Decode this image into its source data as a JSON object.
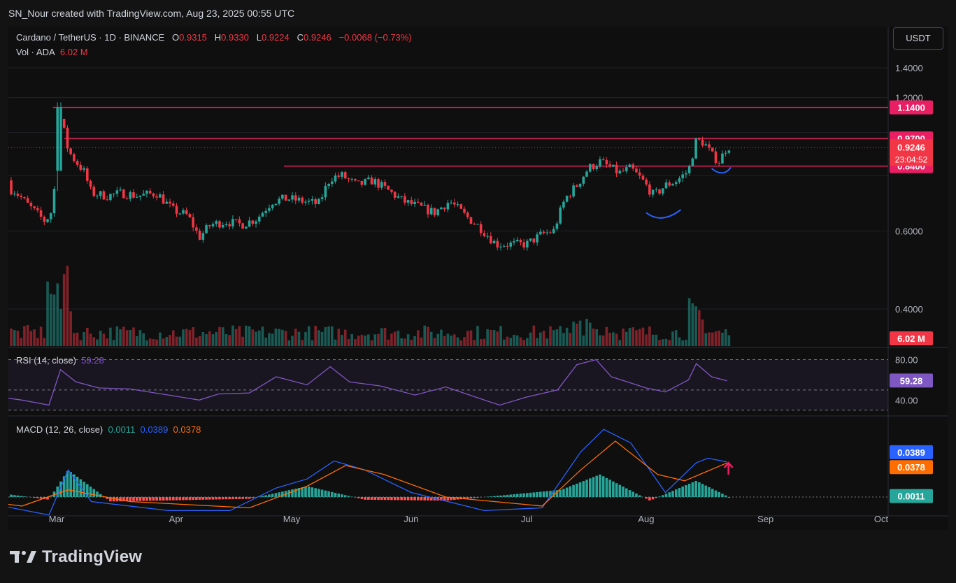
{
  "header": {
    "title": "SN_Nour created with TradingView.com, Aug 23, 2025 00:55 UTC"
  },
  "legend": {
    "symbol": "Cardano / TetherUS · 1D · BINANCE",
    "o_label": "O",
    "o_value": "0.9315",
    "h_label": "H",
    "h_value": "0.9330",
    "l_label": "L",
    "l_value": "0.9224",
    "c_label": "C",
    "c_value": "0.9246",
    "change": "−0.0068 (−0.73%)",
    "vol_label": "Vol · ADA",
    "vol_value": "6.02 M"
  },
  "currency_button": "USDT",
  "rsi_legend": {
    "label": "RSI (14, close)",
    "value": "59.28"
  },
  "macd_legend": {
    "label": "MACD (12, 26, close)",
    "hist": "0.0011",
    "macd": "0.0389",
    "signal": "0.0378"
  },
  "footer": {
    "brand": "TradingView"
  },
  "colors": {
    "up": "#26a69a",
    "down": "#f23645",
    "level": "#e91e63",
    "rsi": "#7e57c2",
    "macd": "#2962ff",
    "signal": "#ff6d00",
    "annotation": "#2962ff"
  },
  "chart_data": [
    {
      "type": "candlestick",
      "title": "Cardano / TetherUS · 1D · BINANCE",
      "x_ticks": [
        "Mar",
        "Apr",
        "May",
        "Jun",
        "Jul",
        "Aug",
        "Sep",
        "Oct"
      ],
      "y_ticks": [
        "1.4000",
        "1.2000",
        "0.6000",
        "0.4000"
      ],
      "ylim": [
        0.33,
        1.5
      ],
      "last_price": "0.9246",
      "countdown": "23:04:52",
      "horizontal_levels": [
        {
          "label": "1.1400",
          "value": 1.14,
          "from": "2025-02-28"
        },
        {
          "label": "0.9700",
          "value": 0.97,
          "from": "2025-03-03"
        },
        {
          "label": "0.8400",
          "value": 0.84,
          "from": "2025-04-29"
        }
      ],
      "volume_label": "6.02 M",
      "path": [
        [
          "2025-02-01",
          0.78
        ],
        [
          "2025-02-05",
          0.77
        ],
        [
          "2025-02-10",
          0.76
        ],
        [
          "2025-02-14",
          0.76
        ],
        [
          "2025-02-18",
          0.74
        ],
        [
          "2025-02-22",
          0.68
        ],
        [
          "2025-02-26",
          0.63
        ],
        [
          "2025-02-28",
          0.67
        ],
        [
          "2025-03-02",
          1.08
        ],
        [
          "2025-03-03",
          1.0
        ],
        [
          "2025-03-04",
          0.91
        ],
        [
          "2025-03-06",
          0.86
        ],
        [
          "2025-03-08",
          0.82
        ],
        [
          "2025-03-10",
          0.73
        ],
        [
          "2025-03-14",
          0.72
        ],
        [
          "2025-03-18",
          0.73
        ],
        [
          "2025-03-22",
          0.72
        ],
        [
          "2025-03-27",
          0.73
        ],
        [
          "2025-03-31",
          0.67
        ],
        [
          "2025-04-04",
          0.65
        ],
        [
          "2025-04-07",
          0.58
        ],
        [
          "2025-04-10",
          0.62
        ],
        [
          "2025-04-14",
          0.63
        ],
        [
          "2025-04-18",
          0.62
        ],
        [
          "2025-04-22",
          0.64
        ],
        [
          "2025-04-26",
          0.7
        ],
        [
          "2025-04-30",
          0.71
        ],
        [
          "2025-05-04",
          0.7
        ],
        [
          "2025-05-08",
          0.69
        ],
        [
          "2025-05-11",
          0.79
        ],
        [
          "2025-05-14",
          0.8
        ],
        [
          "2025-05-18",
          0.76
        ],
        [
          "2025-05-22",
          0.78
        ],
        [
          "2025-05-26",
          0.74
        ],
        [
          "2025-05-30",
          0.7
        ],
        [
          "2025-06-03",
          0.68
        ],
        [
          "2025-06-07",
          0.66
        ],
        [
          "2025-06-11",
          0.7
        ],
        [
          "2025-06-15",
          0.65
        ],
        [
          "2025-06-19",
          0.61
        ],
        [
          "2025-06-23",
          0.56
        ],
        [
          "2025-06-27",
          0.56
        ],
        [
          "2025-07-01",
          0.56
        ],
        [
          "2025-07-05",
          0.59
        ],
        [
          "2025-07-08",
          0.6
        ],
        [
          "2025-07-11",
          0.71
        ],
        [
          "2025-07-14",
          0.76
        ],
        [
          "2025-07-17",
          0.83
        ],
        [
          "2025-07-20",
          0.86
        ],
        [
          "2025-07-22",
          0.84
        ],
        [
          "2025-07-25",
          0.81
        ],
        [
          "2025-07-28",
          0.83
        ],
        [
          "2025-07-31",
          0.78
        ],
        [
          "2025-08-03",
          0.72
        ],
        [
          "2025-08-06",
          0.76
        ],
        [
          "2025-08-09",
          0.78
        ],
        [
          "2025-08-12",
          0.82
        ],
        [
          "2025-08-14",
          0.96
        ],
        [
          "2025-08-16",
          0.95
        ],
        [
          "2025-08-18",
          0.89
        ],
        [
          "2025-08-20",
          0.86
        ],
        [
          "2025-08-22",
          0.93
        ]
      ]
    },
    {
      "type": "line",
      "title": "RSI (14, close)",
      "y_ticks": [
        "80.00",
        "40.00"
      ],
      "ylim": [
        25,
        90
      ],
      "current_value": "59.28",
      "points": [
        [
          "2025-02-01",
          48
        ],
        [
          "2025-02-10",
          45
        ],
        [
          "2025-02-20",
          40
        ],
        [
          "2025-02-27",
          35
        ],
        [
          "2025-03-02",
          70
        ],
        [
          "2025-03-06",
          58
        ],
        [
          "2025-03-12",
          52
        ],
        [
          "2025-03-20",
          51
        ],
        [
          "2025-03-30",
          45
        ],
        [
          "2025-04-07",
          40
        ],
        [
          "2025-04-12",
          46
        ],
        [
          "2025-04-20",
          47
        ],
        [
          "2025-04-27",
          63
        ],
        [
          "2025-05-05",
          55
        ],
        [
          "2025-05-11",
          73
        ],
        [
          "2025-05-16",
          58
        ],
        [
          "2025-05-24",
          54
        ],
        [
          "2025-06-02",
          45
        ],
        [
          "2025-06-10",
          53
        ],
        [
          "2025-06-20",
          40
        ],
        [
          "2025-06-24",
          35
        ],
        [
          "2025-07-01",
          43
        ],
        [
          "2025-07-09",
          50
        ],
        [
          "2025-07-14",
          75
        ],
        [
          "2025-07-19",
          80
        ],
        [
          "2025-07-23",
          63
        ],
        [
          "2025-08-01",
          52
        ],
        [
          "2025-08-06",
          48
        ],
        [
          "2025-08-12",
          60
        ],
        [
          "2025-08-14",
          76
        ],
        [
          "2025-08-18",
          63
        ],
        [
          "2025-08-22",
          59
        ]
      ]
    },
    {
      "type": "line",
      "title": "MACD (12, 26, close)",
      "series": [
        {
          "name": "MACD",
          "points": [
            [
              "2025-02-01",
              0.005
            ],
            [
              "2025-02-15",
              -0.01
            ],
            [
              "2025-02-27",
              -0.02
            ],
            [
              "2025-03-04",
              0.03
            ],
            [
              "2025-03-10",
              -0.005
            ],
            [
              "2025-03-30",
              -0.015
            ],
            [
              "2025-04-15",
              -0.015
            ],
            [
              "2025-04-27",
              0.01
            ],
            [
              "2025-05-05",
              0.02
            ],
            [
              "2025-05-12",
              0.04
            ],
            [
              "2025-05-20",
              0.03
            ],
            [
              "2025-06-01",
              0.005
            ],
            [
              "2025-06-20",
              -0.015
            ],
            [
              "2025-07-05",
              -0.012
            ],
            [
              "2025-07-15",
              0.05
            ],
            [
              "2025-07-21",
              0.075
            ],
            [
              "2025-07-28",
              0.06
            ],
            [
              "2025-08-06",
              0.005
            ],
            [
              "2025-08-14",
              0.038
            ],
            [
              "2025-08-17",
              0.043
            ],
            [
              "2025-08-22",
              0.0389
            ]
          ]
        },
        {
          "name": "Signal",
          "points": [
            [
              "2025-02-01",
              0.0
            ],
            [
              "2025-02-20",
              -0.01
            ],
            [
              "2025-03-04",
              0.008
            ],
            [
              "2025-03-20",
              -0.005
            ],
            [
              "2025-04-20",
              -0.012
            ],
            [
              "2025-05-05",
              0.012
            ],
            [
              "2025-05-15",
              0.035
            ],
            [
              "2025-05-25",
              0.025
            ],
            [
              "2025-06-10",
              0.0
            ],
            [
              "2025-07-05",
              -0.01
            ],
            [
              "2025-07-15",
              0.03
            ],
            [
              "2025-07-24",
              0.062
            ],
            [
              "2025-08-04",
              0.025
            ],
            [
              "2025-08-11",
              0.018
            ],
            [
              "2025-08-22",
              0.0378
            ]
          ]
        },
        {
          "name": "Histogram",
          "points": [
            [
              "2025-02-01",
              0.012
            ],
            [
              "2025-02-27",
              -0.003
            ],
            [
              "2025-03-04",
              0.03
            ],
            [
              "2025-03-15",
              -0.005
            ],
            [
              "2025-04-20",
              -0.002
            ],
            [
              "2025-05-05",
              0.012
            ],
            [
              "2025-05-20",
              -0.003
            ],
            [
              "2025-06-10",
              -0.004
            ],
            [
              "2025-07-10",
              0.008
            ],
            [
              "2025-07-20",
              0.025
            ],
            [
              "2025-08-02",
              -0.004
            ],
            [
              "2025-08-14",
              0.018
            ],
            [
              "2025-08-22",
              0.0011
            ]
          ]
        }
      ],
      "labels": {
        "macd": "0.0389",
        "signal": "0.0378",
        "hist": "0.0011"
      }
    }
  ]
}
